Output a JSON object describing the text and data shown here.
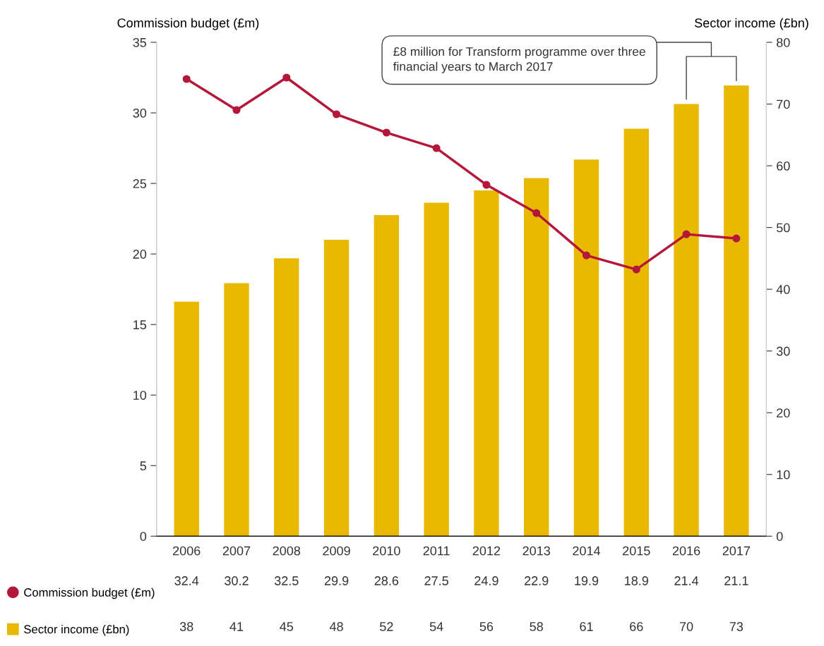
{
  "chart_data": {
    "type": "bar",
    "ylabel": "Commission budget (£m)",
    "y2label": "Sector income (£bn)",
    "categories": [
      "2006",
      "2007",
      "2008",
      "2009",
      "2010",
      "2011",
      "2012",
      "2013",
      "2014",
      "2015",
      "2016",
      "2017"
    ],
    "series": [
      {
        "name": "Commission budget (£m)",
        "type": "line",
        "color": "#b5173b",
        "axis": "y",
        "values": [
          32.4,
          30.2,
          32.5,
          29.9,
          28.6,
          27.5,
          24.9,
          22.9,
          19.9,
          18.9,
          21.4,
          21.1
        ]
      },
      {
        "name": "Sector income (£bn)",
        "type": "bar",
        "color": "#e8b900",
        "axis": "y2",
        "values": [
          38,
          41,
          45,
          48,
          52,
          54,
          56,
          58,
          61,
          66,
          70,
          73
        ]
      }
    ],
    "ylim": [
      0,
      35
    ],
    "yticks": [
      0,
      5,
      10,
      15,
      20,
      25,
      30,
      35
    ],
    "y2lim": [
      0,
      80
    ],
    "y2ticks": [
      0,
      10,
      20,
      30,
      40,
      50,
      60,
      70,
      80
    ],
    "annotations": [
      "£8 million for Transform programme over three financial years to March 2017"
    ],
    "marker": "circle",
    "line_style": "solid",
    "grid": false,
    "legend": "bottom left",
    "data_labels": true
  }
}
